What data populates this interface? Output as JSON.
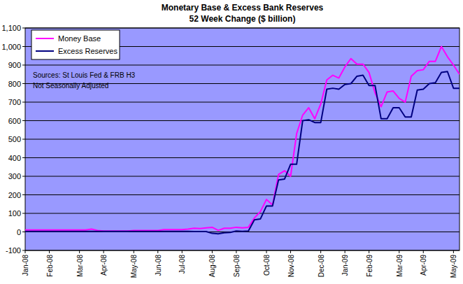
{
  "chart_data": {
    "type": "line",
    "title": "Monetary Base & Excess Bank Reserves",
    "subtitle": "52 Week Change ($ billion)",
    "annotations": [
      "Sources: St Louis Fed & FRB H3",
      "Not Seasonally Adjusted"
    ],
    "categories": [
      "Jan-08",
      null,
      null,
      null,
      "Feb-08",
      null,
      null,
      null,
      null,
      "Mar-08",
      null,
      null,
      null,
      "Apr-08",
      null,
      null,
      null,
      null,
      "May-08",
      null,
      null,
      null,
      "Jun-08",
      null,
      null,
      null,
      "Jul-08",
      null,
      null,
      null,
      null,
      "Aug-08",
      null,
      null,
      null,
      "Sep-08",
      null,
      null,
      null,
      null,
      "Oct-08",
      null,
      null,
      null,
      "Nov-08",
      null,
      null,
      null,
      null,
      "Dec-08",
      null,
      null,
      null,
      "Jan-09",
      null,
      null,
      null,
      "Feb-09",
      null,
      null,
      null,
      null,
      "Mar-09",
      null,
      null,
      null,
      "Apr-09",
      null,
      null,
      null,
      null,
      "May-09",
      null
    ],
    "series": [
      {
        "name": "Money Base",
        "color": "#ff00ff",
        "values": [
          10,
          10,
          10,
          10,
          10,
          10,
          10,
          10,
          10,
          10,
          10,
          15,
          8,
          5,
          5,
          5,
          5,
          5,
          8,
          8,
          8,
          8,
          8,
          12,
          12,
          12,
          12,
          15,
          20,
          18,
          22,
          25,
          8,
          20,
          20,
          25,
          22,
          25,
          75,
          110,
          175,
          145,
          310,
          330,
          300,
          530,
          630,
          670,
          610,
          690,
          820,
          845,
          830,
          890,
          935,
          905,
          905,
          860,
          750,
          675,
          755,
          760,
          720,
          700,
          840,
          870,
          875,
          920,
          920,
          1000,
          945,
          900,
          850
        ]
      },
      {
        "name": "Excess Reserves",
        "color": "#000080",
        "values": [
          3,
          3,
          3,
          3,
          3,
          3,
          3,
          3,
          3,
          3,
          3,
          3,
          3,
          3,
          3,
          3,
          3,
          3,
          3,
          3,
          3,
          3,
          3,
          3,
          3,
          3,
          3,
          3,
          2,
          2,
          2,
          -8,
          -10,
          -5,
          -3,
          5,
          3,
          5,
          65,
          70,
          140,
          140,
          280,
          285,
          365,
          365,
          600,
          605,
          590,
          590,
          770,
          775,
          770,
          795,
          800,
          840,
          845,
          790,
          790,
          610,
          610,
          670,
          670,
          620,
          620,
          765,
          770,
          800,
          805,
          860,
          865,
          775,
          775
        ]
      }
    ],
    "ylim": [
      -100,
      1100
    ],
    "yticks": [
      -100,
      0,
      100,
      200,
      300,
      400,
      500,
      600,
      700,
      800,
      900,
      {
        "value": 1000,
        "label": "1,000"
      },
      {
        "value": 1100,
        "label": "1,100"
      }
    ],
    "grid": true,
    "legend": "upper left"
  }
}
